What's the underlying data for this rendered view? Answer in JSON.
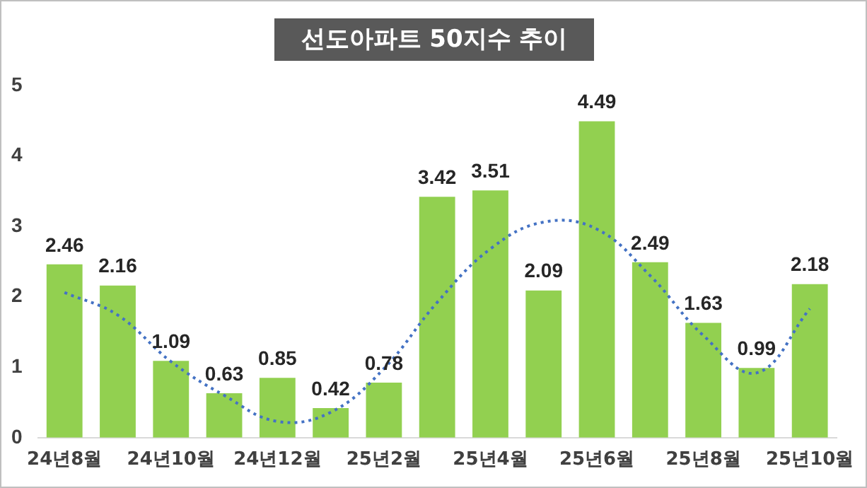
{
  "chart_data": {
    "type": "bar",
    "title": "선도아파트 50지수 추이",
    "categories": [
      "24년8월",
      null,
      "24년10월",
      null,
      "24년12월",
      null,
      "25년2월",
      null,
      "25년4월",
      null,
      "25년6월",
      null,
      "25년8월",
      null,
      "25년10월"
    ],
    "series": [
      {
        "color": "#92d050",
        "values": [
          2.46,
          2.16,
          1.09,
          0.63,
          0.85,
          0.42,
          0.78,
          3.42,
          3.51,
          2.09,
          4.49,
          2.49,
          1.63,
          0.99,
          2.18
        ],
        "value_labels": [
          "2.46",
          "2.16",
          "1.09",
          "0.63",
          "0.85",
          "0.42",
          "0.78",
          "3.42",
          "3.51",
          "2.09",
          "4.49",
          "2.49",
          "1.63",
          "0.99",
          "2.18"
        ]
      },
      {
        "type": "line",
        "color": "#4472c4",
        "line_style": "dotted",
        "marker": "none",
        "values": [
          2.06,
          1.74,
          1.08,
          0.6,
          0.23,
          0.36,
          0.98,
          1.92,
          2.68,
          3.06,
          2.96,
          2.3,
          1.45,
          0.92,
          1.83
        ]
      }
    ],
    "ylim": [
      0,
      5
    ],
    "yticks": [
      0,
      1,
      2,
      3,
      4,
      5
    ],
    "grid": false,
    "legend": false
  }
}
